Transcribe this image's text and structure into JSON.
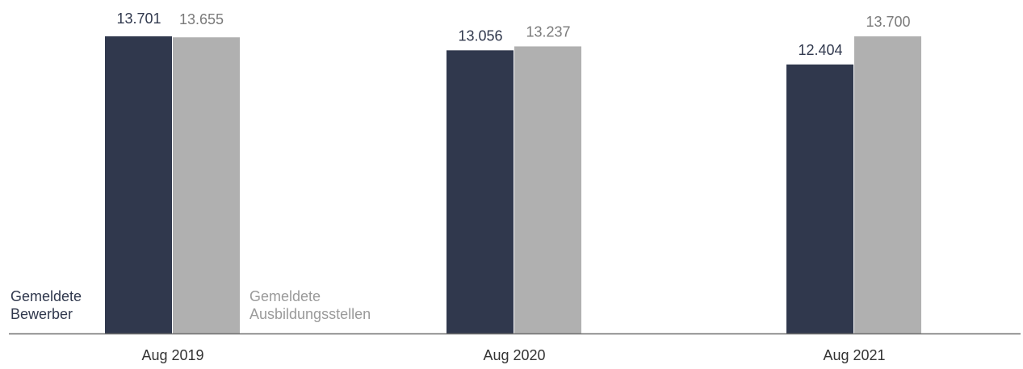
{
  "chart_data": {
    "type": "bar",
    "categories": [
      "Aug 2019",
      "Aug 2020",
      "Aug 2021"
    ],
    "series": [
      {
        "name": "Gemeldete Bewerber",
        "name_lines": [
          "Gemeldete",
          "Bewerber"
        ],
        "values": [
          13701,
          13056,
          12404
        ],
        "labels": [
          "13.701",
          "13.056",
          "12.404"
        ],
        "color": "#30384d",
        "label_color": "#30384d"
      },
      {
        "name": "Gemeldete Ausbildungsstellen",
        "name_lines": [
          "Gemeldete",
          "Ausbildungsstellen"
        ],
        "values": [
          13655,
          13237,
          13700
        ],
        "labels": [
          "13.655",
          "13.237",
          "13.700"
        ],
        "color": "#b0b0b0",
        "label_color": "#7a7a7a"
      }
    ],
    "title": "",
    "xlabel": "",
    "ylabel": "",
    "ylim": [
      0,
      13701
    ],
    "grid": false,
    "legend": "inline bottom-left",
    "axis_color": "#6f6f6f"
  }
}
